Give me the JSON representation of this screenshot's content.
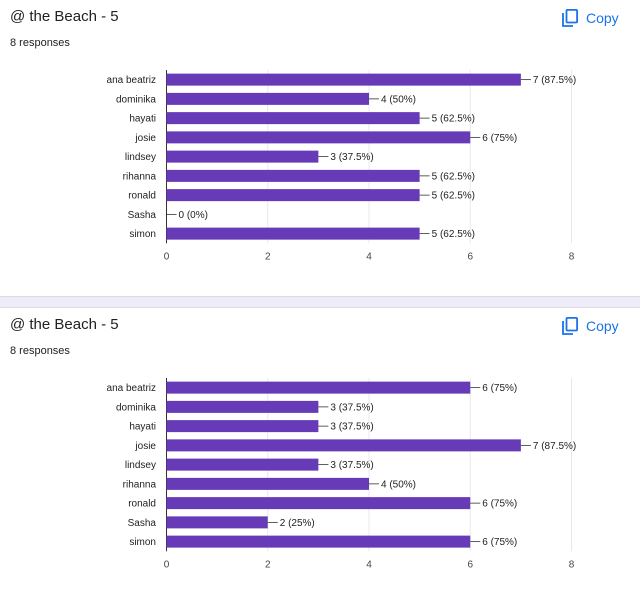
{
  "cards": [
    {
      "title": "@ the Beach - 5",
      "responses": "8 responses",
      "copy_label": "Copy",
      "icons": {
        "copy": "copy-icon"
      }
    },
    {
      "title": "@ the Beach - 5",
      "responses": "8 responses",
      "copy_label": "Copy",
      "icons": {
        "copy": "copy-icon"
      }
    }
  ],
  "colors": {
    "bar": "#673ab7",
    "accent": "#1a73e8",
    "grid": "#e8e8e8",
    "axis": "#333333"
  },
  "chart_data": [
    {
      "type": "bar",
      "orientation": "horizontal",
      "categories": [
        "ana beatriz",
        "dominika",
        "hayati",
        "josie",
        "lindsey",
        "rihanna",
        "ronald",
        "Sasha",
        "simon"
      ],
      "values": [
        7,
        4,
        5,
        6,
        3,
        5,
        5,
        0,
        5
      ],
      "data_labels": [
        "7 (87.5%)",
        "4 (50%)",
        "5 (62.5%)",
        "6 (75%)",
        "3 (37.5%)",
        "5 (62.5%)",
        "5 (62.5%)",
        "0 (0%)",
        "5 (62.5%)"
      ],
      "xlim": [
        0,
        8
      ],
      "xticks": [
        0,
        2,
        4,
        6,
        8
      ],
      "grid": true
    },
    {
      "type": "bar",
      "orientation": "horizontal",
      "categories": [
        "ana beatriz",
        "dominika",
        "hayati",
        "josie",
        "lindsey",
        "rihanna",
        "ronald",
        "Sasha",
        "simon"
      ],
      "values": [
        6,
        3,
        3,
        7,
        3,
        4,
        6,
        2,
        6
      ],
      "data_labels": [
        "6 (75%)",
        "3 (37.5%)",
        "3 (37.5%)",
        "7 (87.5%)",
        "3 (37.5%)",
        "4 (50%)",
        "6 (75%)",
        "2 (25%)",
        "6 (75%)"
      ],
      "xlim": [
        0,
        8
      ],
      "xticks": [
        0,
        2,
        4,
        6,
        8
      ],
      "grid": true
    }
  ]
}
